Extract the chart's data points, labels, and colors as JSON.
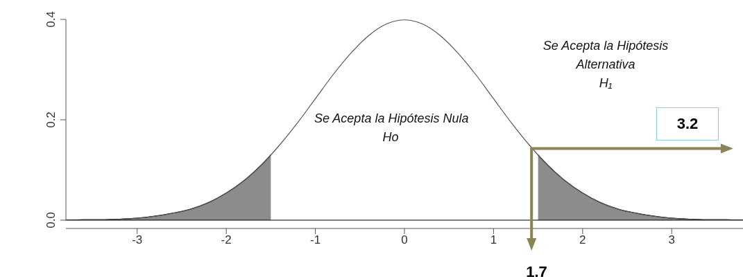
{
  "chart_data": {
    "type": "line",
    "xlim": [
      -3.8,
      3.8
    ],
    "ylim": [
      0,
      0.4
    ],
    "xticks": [
      -3,
      -2,
      -1,
      0,
      1,
      2,
      3
    ],
    "yticks": [
      {
        "value": 0,
        "label": "0.0"
      },
      0.2,
      0.4
    ],
    "series": [
      {
        "type": "area",
        "color": "#8c8c8c",
        "x": [
          -3.8,
          -3.6,
          -3.4,
          -3.2,
          -3.0,
          -2.8,
          -2.6,
          -2.4,
          -2.2,
          -2.0,
          -1.8,
          -1.6,
          -1.5
        ],
        "values": [
          0,
          0.001,
          0.001,
          0.002,
          0.004,
          0.008,
          0.014,
          0.022,
          0.035,
          0.054,
          0.079,
          0.111,
          0.13
        ]
      },
      {
        "type": "area",
        "color": "#8c8c8c",
        "x": [
          1.5,
          1.6,
          1.8,
          2.0,
          2.2,
          2.4,
          2.6,
          2.8,
          3.0,
          3.2,
          3.4,
          3.6,
          3.8
        ],
        "values": [
          0.13,
          0.111,
          0.079,
          0.054,
          0.035,
          0.022,
          0.014,
          0.008,
          0.004,
          0.002,
          0.001,
          0.001,
          0
        ]
      },
      {
        "color": "#555555",
        "x": [
          -3.8,
          -3.6,
          -3.4,
          -3.2,
          -3.0,
          -2.8,
          -2.6,
          -2.4,
          -2.2,
          -2.0,
          -1.8,
          -1.6,
          -1.4,
          -1.2,
          -1.0,
          -0.8,
          -0.6,
          -0.4,
          -0.2,
          0,
          0.2,
          0.4,
          0.6,
          0.8,
          1.0,
          1.2,
          1.4,
          1.6,
          1.8,
          2.0,
          2.2,
          2.4,
          2.6,
          2.8,
          3.0,
          3.2,
          3.4,
          3.6,
          3.8
        ],
        "values": [
          0,
          0.001,
          0.001,
          0.002,
          0.004,
          0.008,
          0.014,
          0.022,
          0.035,
          0.054,
          0.079,
          0.111,
          0.15,
          0.194,
          0.242,
          0.29,
          0.333,
          0.368,
          0.391,
          0.399,
          0.391,
          0.368,
          0.333,
          0.29,
          0.242,
          0.194,
          0.15,
          0.111,
          0.079,
          0.054,
          0.035,
          0.022,
          0.014,
          0.008,
          0.004,
          0.002,
          0.001,
          0.001,
          0
        ]
      }
    ],
    "ref_lines": [
      {
        "axis": "y",
        "value": 0,
        "color": "#000000"
      }
    ],
    "annotations": [
      "Se Acepta la Hipótesis Nula\nHo",
      "Se Acepta la Hipótesis\nAlternativa\nH₁",
      "3.2",
      "1.7"
    ]
  }
}
